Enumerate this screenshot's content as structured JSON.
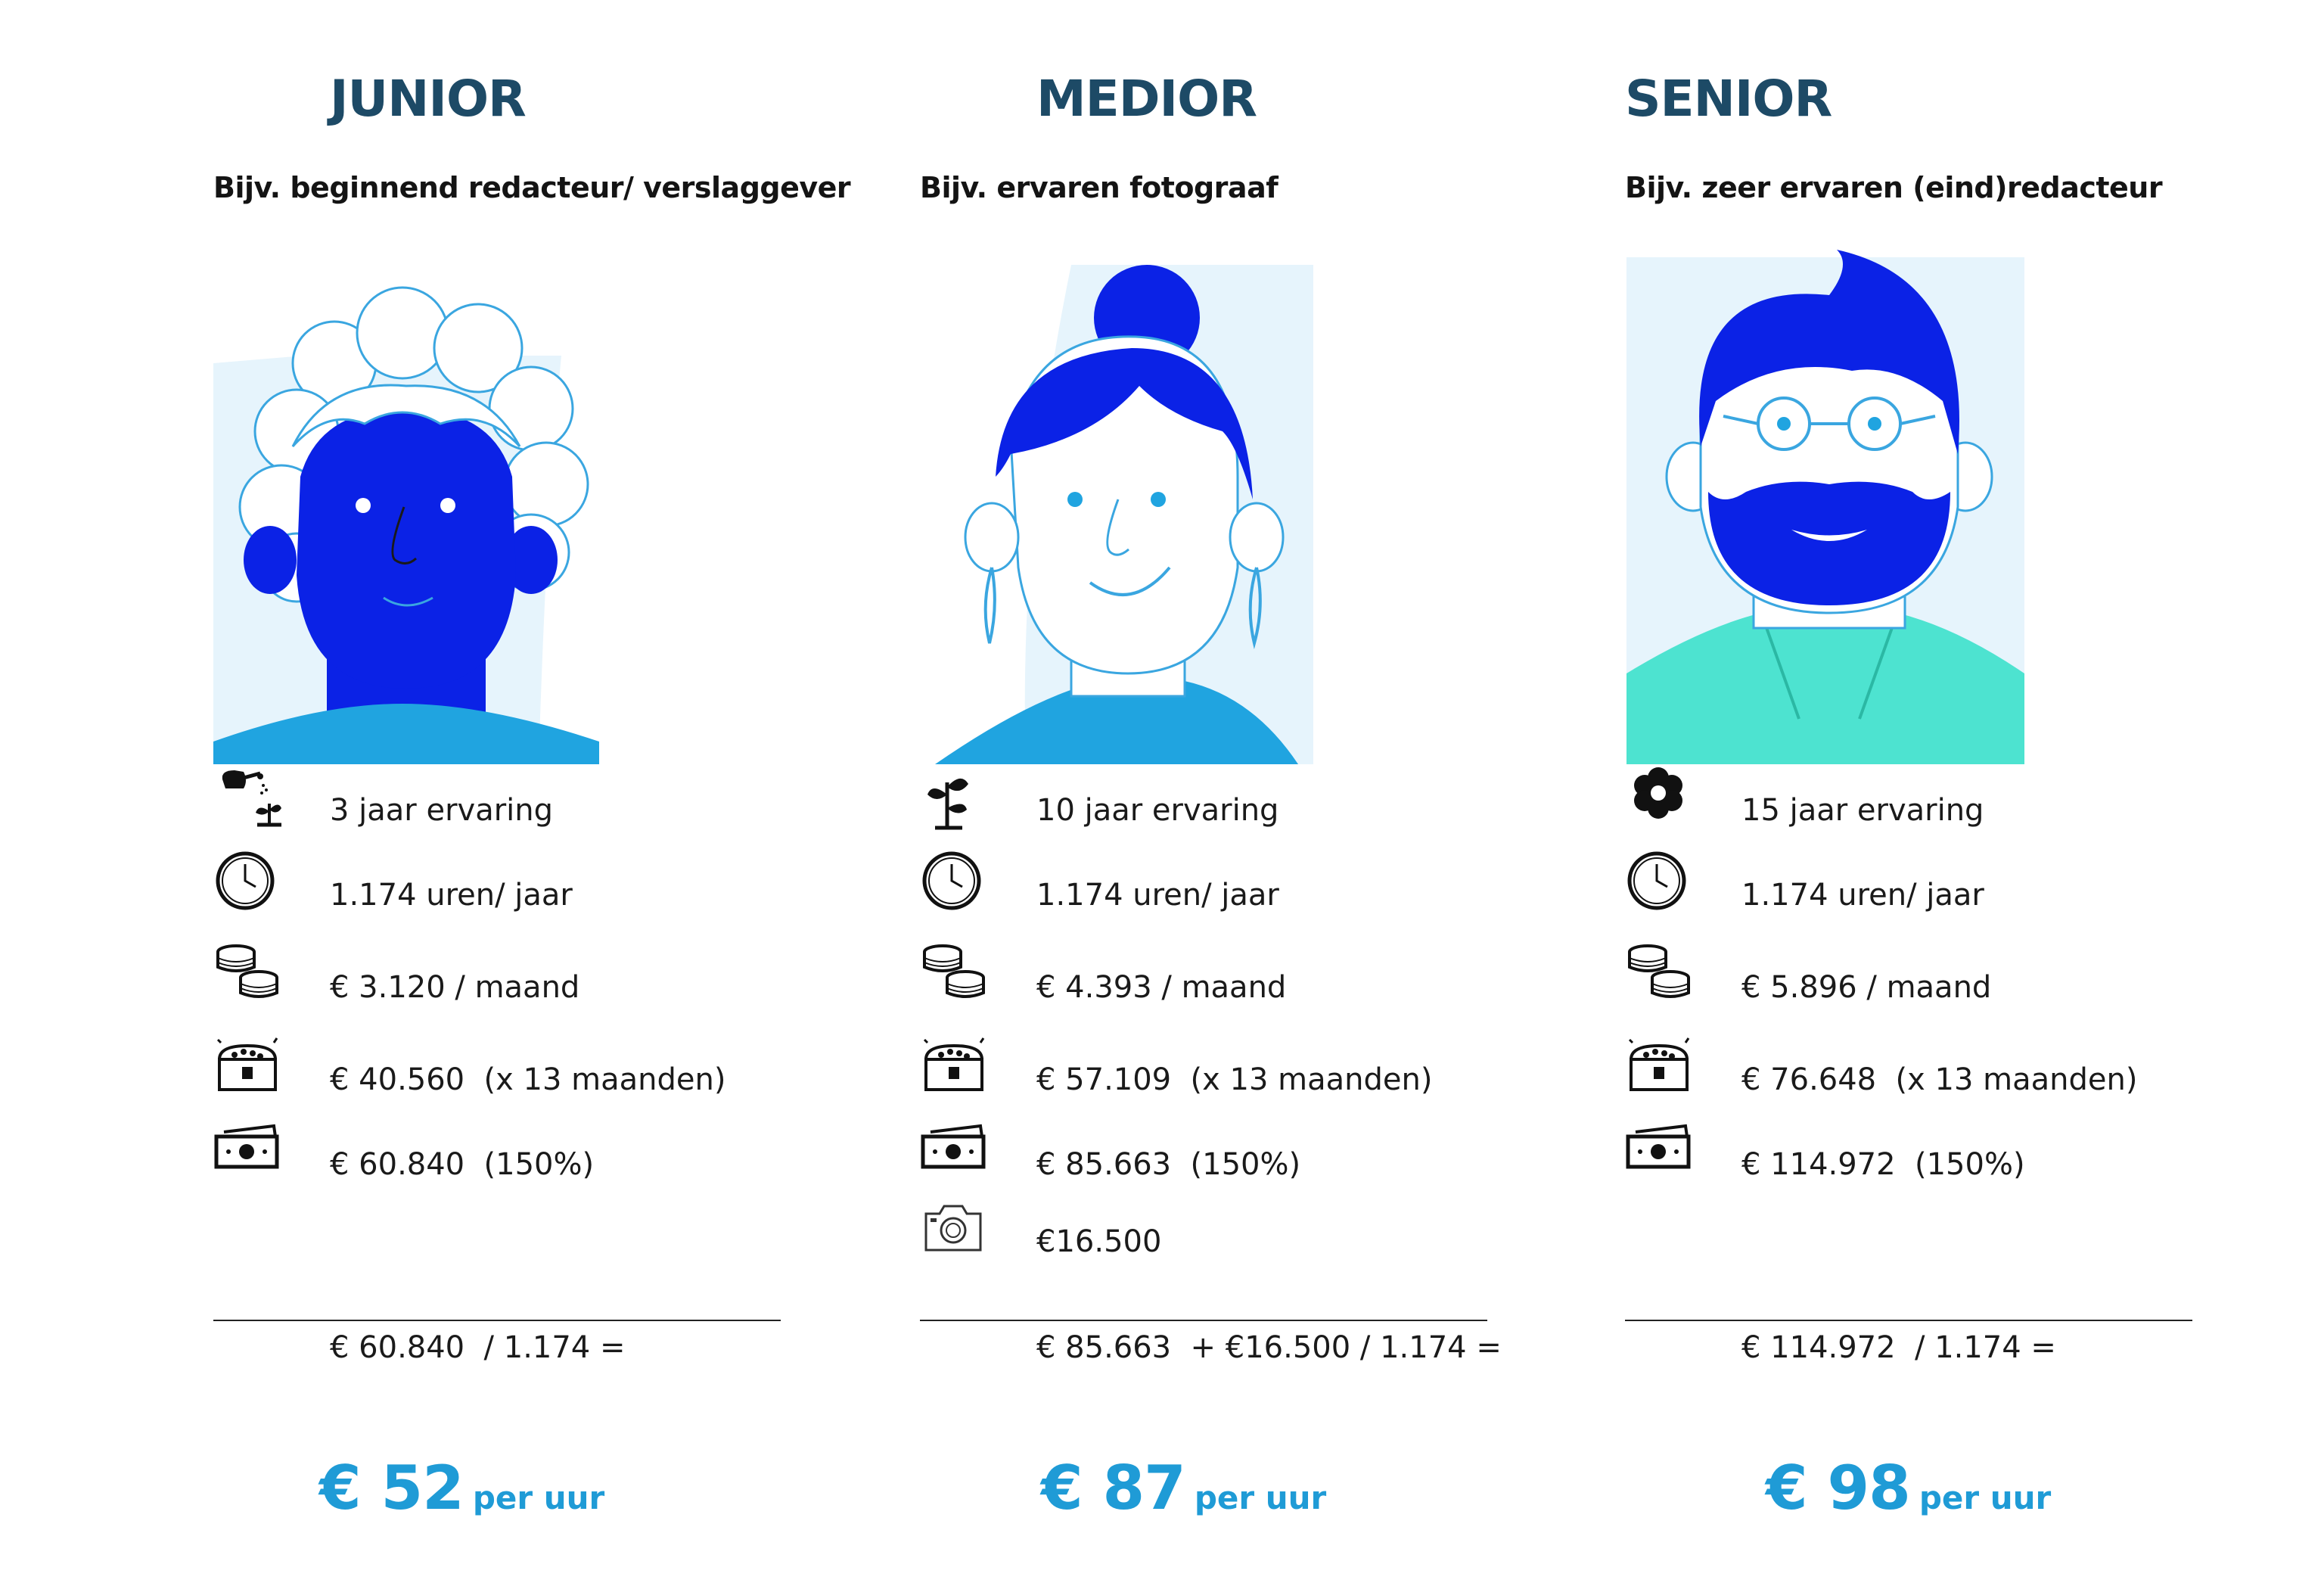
{
  "colors": {
    "heading": "#1d4a66",
    "accent_blue": "#1f9bd6",
    "hair_blue": "#0b22e6",
    "skin_light": "#ffffff",
    "bg_tint": "#e6f4fc",
    "shirt_teal": "#4de3d0"
  },
  "junior": {
    "level": "JUNIOR",
    "example": "Bijv. beginnend redacteur/ verslaggever",
    "rows": [
      {
        "icon": "watering-can-sprout-icon",
        "text": "3 jaar ervaring"
      },
      {
        "icon": "clock-icon",
        "text": "1.174 uren/ jaar"
      },
      {
        "icon": "coins-icon",
        "text": "€ 3.120 / maand"
      },
      {
        "icon": "treasure-chest-icon",
        "text": "€ 40.560  (x 13 maanden)"
      },
      {
        "icon": "banknote-icon",
        "text": "€ 60.840  (150%)"
      }
    ],
    "formula": "€ 60.840  / 1.174 =",
    "result_amount": "€ 52",
    "result_unit": "per uur"
  },
  "medior": {
    "level": "MEDIOR",
    "example": "Bijv. ervaren fotograaf",
    "rows": [
      {
        "icon": "seedling-icon",
        "text": "10 jaar ervaring"
      },
      {
        "icon": "clock-icon",
        "text": "1.174 uren/ jaar"
      },
      {
        "icon": "coins-icon",
        "text": "€ 4.393 / maand"
      },
      {
        "icon": "treasure-chest-icon",
        "text": "€ 57.109  (x 13 maanden)"
      },
      {
        "icon": "banknote-icon",
        "text": "€ 85.663  (150%)"
      },
      {
        "icon": "camera-icon",
        "text": "€16.500"
      }
    ],
    "formula": "€ 85.663  + €16.500 / 1.174 =",
    "result_amount": "€ 87",
    "result_unit": "per uur"
  },
  "senior": {
    "level": "SENIOR",
    "example": "Bijv. zeer ervaren (eind)redacteur",
    "rows": [
      {
        "icon": "flower-icon",
        "text": "15 jaar ervaring"
      },
      {
        "icon": "clock-icon",
        "text": "1.174 uren/ jaar"
      },
      {
        "icon": "coins-icon",
        "text": "€ 5.896 / maand"
      },
      {
        "icon": "treasure-chest-icon",
        "text": "€ 76.648  (x 13 maanden)"
      },
      {
        "icon": "banknote-icon",
        "text": "€ 114.972  (150%)"
      }
    ],
    "formula": "€ 114.972  / 1.174 =",
    "result_amount": "€ 98",
    "result_unit": "per uur"
  }
}
